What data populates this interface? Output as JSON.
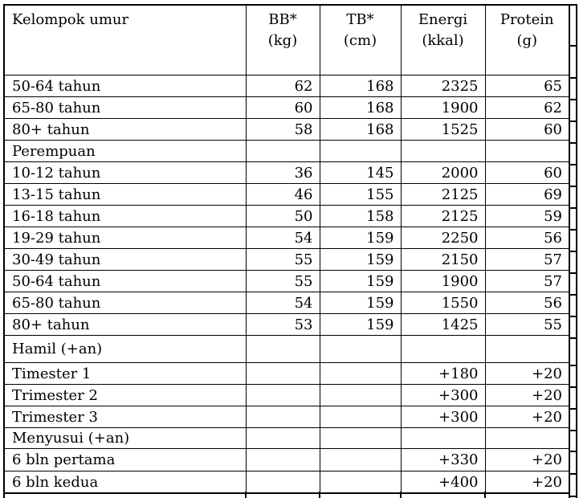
{
  "table": {
    "headers": [
      {
        "title": "Kelompok umur",
        "unit": ""
      },
      {
        "title": "BB*",
        "unit": "(kg)"
      },
      {
        "title": "TB*",
        "unit": "(cm)"
      },
      {
        "title": "Energi",
        "unit": "(kkal)"
      },
      {
        "title": "Protein",
        "unit": "(g)"
      }
    ],
    "rows": [
      {
        "label": "50-64 tahun",
        "bb": "62",
        "tb": "168",
        "energi": "2325",
        "protein": "65"
      },
      {
        "label": "65-80 tahun",
        "bb": "60",
        "tb": "168",
        "energi": "1900",
        "protein": "62"
      },
      {
        "label": "80+ tahun",
        "bb": "58",
        "tb": "168",
        "energi": "1525",
        "protein": "60"
      },
      {
        "label": "Perempuan",
        "bb": "",
        "tb": "",
        "energi": "",
        "protein": ""
      },
      {
        "label": "10-12 tahun",
        "bb": "36",
        "tb": "145",
        "energi": "2000",
        "protein": "60"
      },
      {
        "label": "13-15 tahun",
        "bb": "46",
        "tb": "155",
        "energi": "2125",
        "protein": "69"
      },
      {
        "label": "16-18 tahun",
        "bb": "50",
        "tb": "158",
        "energi": "2125",
        "protein": "59"
      },
      {
        "label": "19-29 tahun",
        "bb": "54",
        "tb": "159",
        "energi": "2250",
        "protein": "56"
      },
      {
        "label": "30-49 tahun",
        "bb": "55",
        "tb": "159",
        "energi": "2150",
        "protein": "57"
      },
      {
        "label": "50-64 tahun",
        "bb": "55",
        "tb": "159",
        "energi": "1900",
        "protein": "57"
      },
      {
        "label": "65-80 tahun",
        "bb": "54",
        "tb": "159",
        "energi": "1550",
        "protein": "56"
      },
      {
        "label": "80+ tahun",
        "bb": "53",
        "tb": "159",
        "energi": "1425",
        "protein": "55"
      },
      {
        "label": "Hamil (+an)",
        "bb": "",
        "tb": "",
        "energi": "",
        "protein": ""
      },
      {
        "label": "Timester 1",
        "bb": "",
        "tb": "",
        "energi": "+180",
        "protein": "+20"
      },
      {
        "label": "Trimester 2",
        "bb": "",
        "tb": "",
        "energi": "+300",
        "protein": "+20"
      },
      {
        "label": "Trimester 3",
        "bb": "",
        "tb": "",
        "energi": "+300",
        "protein": "+20"
      },
      {
        "label": "Menyusui (+an)",
        "bb": "",
        "tb": "",
        "energi": "",
        "protein": ""
      },
      {
        "label": "6 bln pertama",
        "bb": "",
        "tb": "",
        "energi": "+330",
        "protein": "+20"
      },
      {
        "label": "6 bln kedua",
        "bb": "",
        "tb": "",
        "energi": "+400",
        "protein": "+20"
      }
    ]
  },
  "colors": {
    "border": "#000000",
    "text": "#000000",
    "background": "#ffffff"
  }
}
